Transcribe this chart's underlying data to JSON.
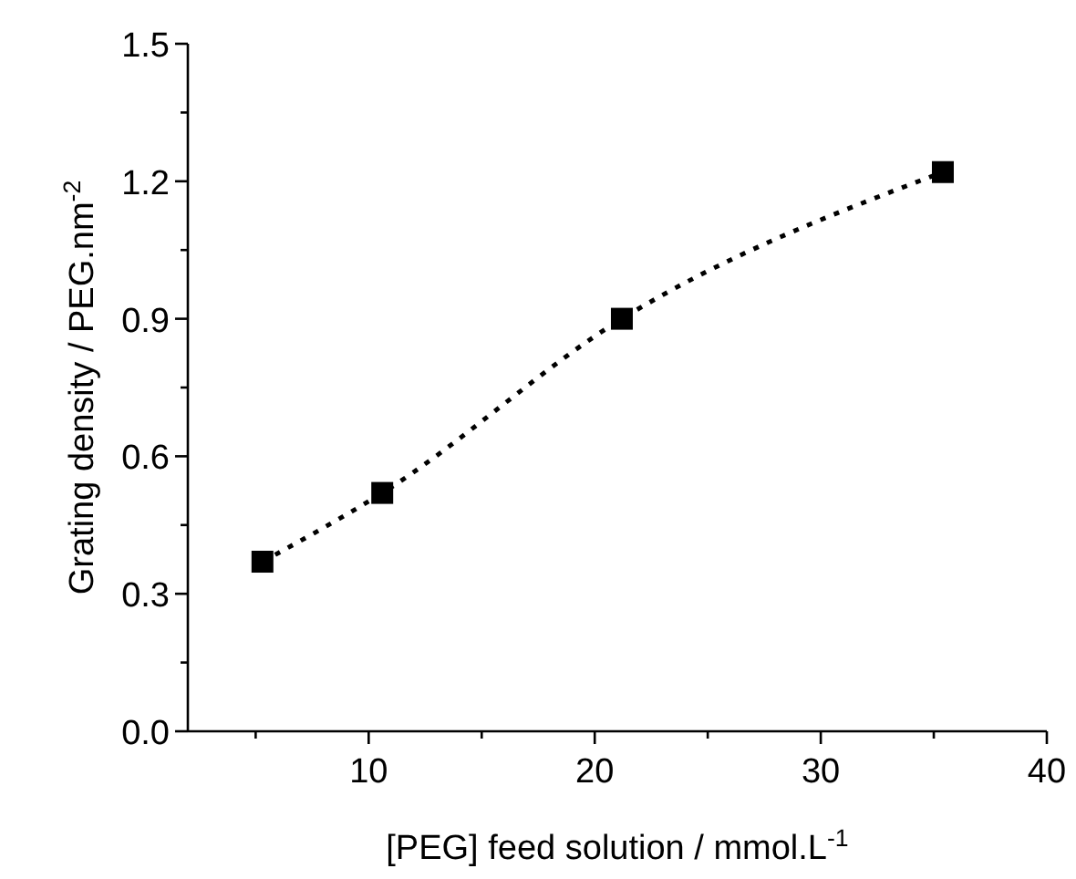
{
  "chart_data": {
    "type": "line",
    "xlabel": "[PEG] feed solution / mmol.L$^{-1}$",
    "ylabel": "Grating density / PEG.nm$^{-2}$",
    "x": [
      5.3,
      10.6,
      21.2,
      35.4
    ],
    "series": [
      {
        "color": "#000000",
        "values": [
          0.37,
          0.52,
          0.9,
          1.22
        ]
      }
    ],
    "marker": "square",
    "line_style": "dotted",
    "xlim": [
      2,
      40
    ],
    "xticks": [
      {
        "value": 5,
        "label": null
      },
      10,
      {
        "value": 15,
        "label": null
      },
      20,
      {
        "value": 25,
        "label": null
      },
      30,
      {
        "value": 35,
        "label": null
      },
      40
    ],
    "ylim": [
      0,
      1.5
    ],
    "yticks": [
      {
        "value": 0,
        "label": "0.0"
      },
      {
        "value": 0.15,
        "label": null
      },
      {
        "value": 0.3,
        "label": "0.3"
      },
      {
        "value": 0.45,
        "label": null
      },
      {
        "value": 0.6,
        "label": "0.6"
      },
      {
        "value": 0.75,
        "label": null
      },
      {
        "value": 0.9,
        "label": "0.9"
      },
      {
        "value": 1.05,
        "label": null
      },
      {
        "value": 1.2,
        "label": "1.2"
      },
      {
        "value": 1.35,
        "label": null
      },
      {
        "value": 1.5,
        "label": "1.5"
      }
    ]
  }
}
